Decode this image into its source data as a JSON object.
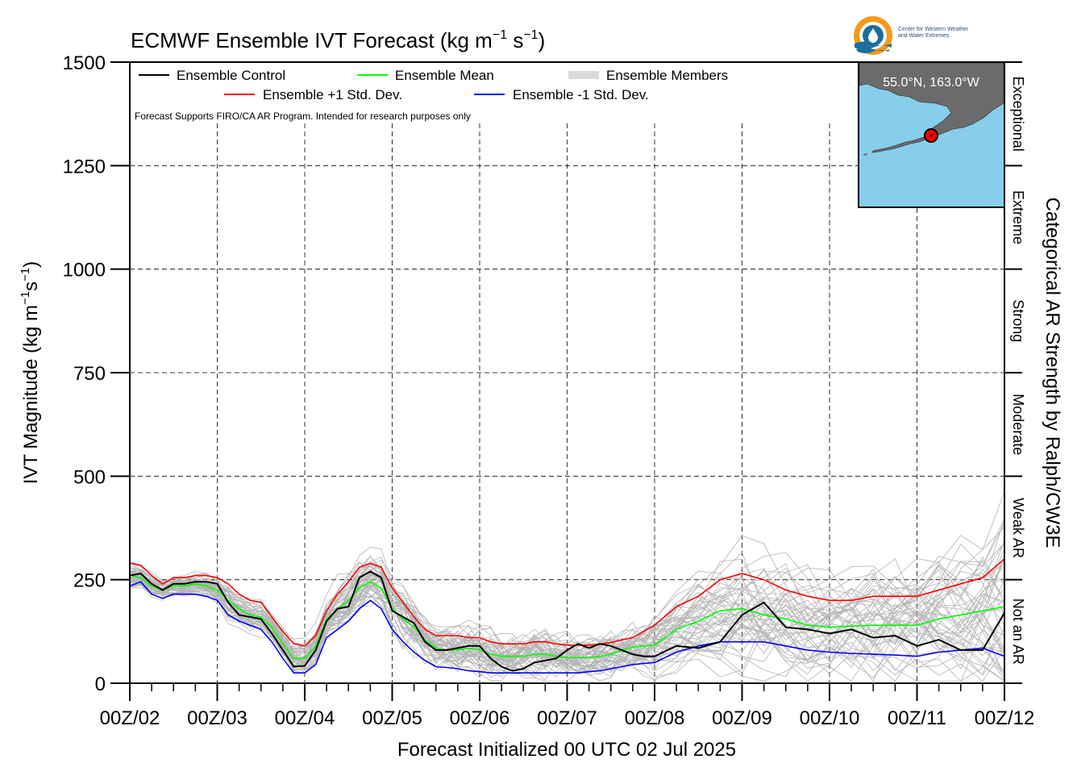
{
  "logo": {
    "line1": "Center for Western Weather",
    "line2": "and Water Extremes"
  },
  "chart_data": {
    "type": "line",
    "title": "ECMWF Ensemble IVT Forecast (kg m",
    "title_sup1": "−1",
    "title_mid": " s",
    "title_sup2": "−1",
    "title_end": ")",
    "xlabel": "Forecast Initialized 00 UTC 02 Jul 2025",
    "ylabel": "IVT Magnitude (kg m",
    "ylabel_sup1": "−1",
    "ylabel_mid": "s",
    "ylabel_sup2": "−1",
    "ylabel_end": ")",
    "right_label": "Categorical AR Strength by Ralph/CW3E",
    "ylim": [
      0,
      1500
    ],
    "xlim": [
      0,
      10
    ],
    "y_ticks": [
      0,
      250,
      500,
      750,
      1000,
      1250,
      1500
    ],
    "y_tick_labels": [
      "0",
      "250",
      "500",
      "750",
      "1000",
      "1250",
      "1500"
    ],
    "x_tick_labels": [
      "00Z/02",
      "00Z/03",
      "00Z/04",
      "00Z/05",
      "00Z/06",
      "00Z/07",
      "00Z/08",
      "00Z/09",
      "00Z/10",
      "00Z/11",
      "00Z/12"
    ],
    "categories": [
      {
        "label": "Not an AR",
        "range": [
          0,
          250
        ]
      },
      {
        "label": "Weak AR",
        "range": [
          250,
          500
        ]
      },
      {
        "label": "Moderate",
        "range": [
          500,
          750
        ]
      },
      {
        "label": "Strong",
        "range": [
          750,
          1000
        ]
      },
      {
        "label": "Extreme",
        "range": [
          1000,
          1250
        ]
      },
      {
        "label": "Exceptional",
        "range": [
          1250,
          1500
        ]
      }
    ],
    "grid": true,
    "legend_position": "top-left",
    "note": "Forecast Supports FIRO/CA AR Program. Intended for research purposes only",
    "inset_map": {
      "label": "55.0°N, 163.0°W",
      "ocean_color": "#87ceeb",
      "land_color": "#6b6b6b",
      "marker_color": "#ff0000"
    },
    "x": [
      0,
      0.125,
      0.25,
      0.375,
      0.5,
      0.625,
      0.75,
      0.875,
      1,
      1.125,
      1.25,
      1.375,
      1.5,
      1.625,
      1.75,
      1.875,
      2,
      2.125,
      2.25,
      2.375,
      2.5,
      2.625,
      2.75,
      2.875,
      3,
      3.125,
      3.25,
      3.375,
      3.5,
      3.625,
      3.75,
      3.875,
      4,
      4.125,
      4.25,
      4.375,
      4.5,
      4.625,
      4.75,
      4.875,
      5,
      5.125,
      5.25,
      5.375,
      5.5,
      5.625,
      5.75,
      5.875,
      6,
      6.25,
      6.5,
      6.75,
      7,
      7.25,
      7.5,
      7.75,
      8,
      8.25,
      8.5,
      8.75,
      9,
      9.25,
      9.5,
      9.75,
      10
    ],
    "series": [
      {
        "name": "Ensemble Control",
        "color": "#000000",
        "values": [
          260,
          265,
          240,
          225,
          240,
          240,
          245,
          245,
          240,
          195,
          165,
          160,
          155,
          120,
          80,
          40,
          42,
          80,
          150,
          180,
          185,
          255,
          270,
          255,
          175,
          160,
          145,
          100,
          80,
          80,
          85,
          90,
          90,
          60,
          40,
          30,
          35,
          50,
          55,
          60,
          80,
          95,
          85,
          95,
          90,
          80,
          70,
          65,
          65,
          90,
          85,
          100,
          165,
          195,
          135,
          130,
          120,
          130,
          110,
          115,
          90,
          105,
          80,
          80,
          170
        ]
      },
      {
        "name": "Ensemble Mean",
        "color": "#00ff00",
        "values": [
          260,
          255,
          235,
          225,
          235,
          235,
          240,
          235,
          225,
          200,
          180,
          165,
          160,
          135,
          95,
          60,
          60,
          90,
          155,
          180,
          200,
          230,
          245,
          230,
          180,
          155,
          135,
          105,
          85,
          80,
          80,
          85,
          80,
          70,
          65,
          65,
          65,
          70,
          70,
          65,
          62,
          62,
          62,
          65,
          70,
          80,
          87,
          90,
          92,
          130,
          150,
          175,
          180,
          165,
          155,
          140,
          135,
          138,
          140,
          140,
          140,
          155,
          165,
          175,
          185
        ]
      },
      {
        "name": "Ensemble +1 Std. Dev.",
        "color": "#ff0000",
        "values": [
          290,
          285,
          260,
          240,
          255,
          255,
          260,
          260,
          255,
          240,
          215,
          200,
          195,
          160,
          125,
          95,
          90,
          115,
          175,
          215,
          245,
          280,
          290,
          280,
          230,
          195,
          160,
          130,
          115,
          115,
          115,
          110,
          110,
          100,
          95,
          95,
          95,
          100,
          100,
          95,
          92,
          92,
          92,
          95,
          98,
          105,
          110,
          125,
          140,
          185,
          210,
          250,
          265,
          250,
          225,
          210,
          200,
          200,
          210,
          210,
          210,
          225,
          240,
          255,
          300
        ]
      },
      {
        "name": "Ensemble -1 Std. Dev.",
        "color": "#0000ff",
        "values": [
          235,
          245,
          215,
          205,
          215,
          215,
          215,
          210,
          200,
          165,
          150,
          140,
          130,
          100,
          60,
          25,
          25,
          45,
          110,
          130,
          150,
          180,
          200,
          180,
          130,
          100,
          75,
          55,
          40,
          38,
          35,
          30,
          28,
          25,
          25,
          25,
          25,
          25,
          25,
          25,
          25,
          25,
          28,
          30,
          35,
          40,
          45,
          48,
          50,
          75,
          90,
          100,
          100,
          100,
          90,
          80,
          75,
          72,
          70,
          68,
          65,
          75,
          80,
          85,
          65
        ]
      }
    ],
    "members_series": {
      "name": "Ensemble Members",
      "color": "#b4b4b4",
      "count": 50
    }
  }
}
